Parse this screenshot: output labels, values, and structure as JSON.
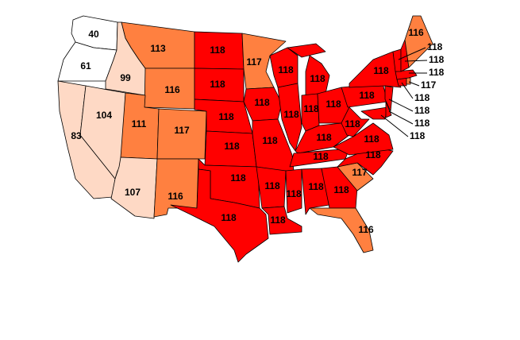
{
  "colors": {
    "low": "#ffffff",
    "mid_low": "#fed9c5",
    "mid_high": "#ff8040",
    "high": "#ff0000",
    "border": "#000000"
  },
  "states": {
    "WA": 40,
    "OR": 61,
    "CA": 83,
    "ID": 99,
    "NV": 104,
    "MT": 113,
    "WY": 116,
    "UT": 111,
    "CO": 117,
    "AZ": 107,
    "NM": 116,
    "ND": 118,
    "SD": 118,
    "NE": 118,
    "KS": 118,
    "OK": 118,
    "TX": 118,
    "MN": 117,
    "IA": 118,
    "MO": 118,
    "AR": 118,
    "LA": 118,
    "WI": 118,
    "IL": 118,
    "MI": 118,
    "IN": 118,
    "OH": 118,
    "KY": 118,
    "TN": 118,
    "MS": 118,
    "AL": 118,
    "GA": 118,
    "FL": 116,
    "SC": 117,
    "NC": 118,
    "VA": 118,
    "WV": 118,
    "PA": 118,
    "NY": 118,
    "MD": 118,
    "DE": 118,
    "NJ": 118,
    "CT": 118,
    "RI": 117,
    "MA": 118,
    "VT": 118,
    "NH": 118,
    "ME": 116
  }
}
